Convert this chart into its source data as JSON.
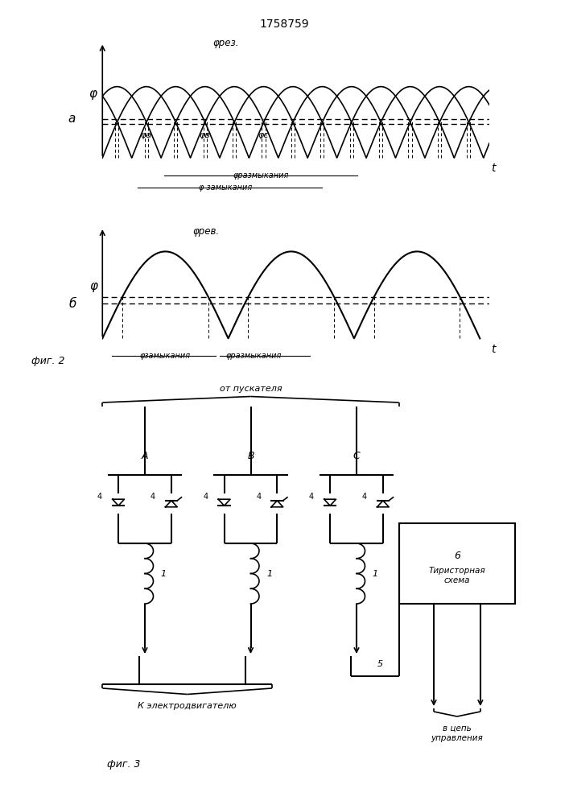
{
  "title": "1758759",
  "fig1_label": "a",
  "fig2_label": "б",
  "fig1_caption": "φрез.",
  "fig2_caption": "φрев.",
  "fig3_caption": "фиг. 3",
  "fig2_fig_label": "фиг. 2",
  "phi_label": "φ",
  "t_label": "t",
  "phi_A": "φа",
  "phi_B": "φв",
  "phi_C": "φс",
  "razm_label": "φразмыкания",
  "zamyk_label": "φ замыкания",
  "fig2_zamyk": "φзамыкания",
  "fig2_razm": "φразмыкания",
  "from_starter": "от пускателя",
  "to_motor": "К электродвигателю",
  "to_control": "в цепь\nуправления",
  "thyristor_num": "6",
  "thyristor_text": "Тиристорная\nсхема",
  "label_5": "5",
  "label_A": "A",
  "label_B": "B",
  "label_C": "C",
  "label_4": "4",
  "label_1": "1",
  "bg": "#ffffff"
}
